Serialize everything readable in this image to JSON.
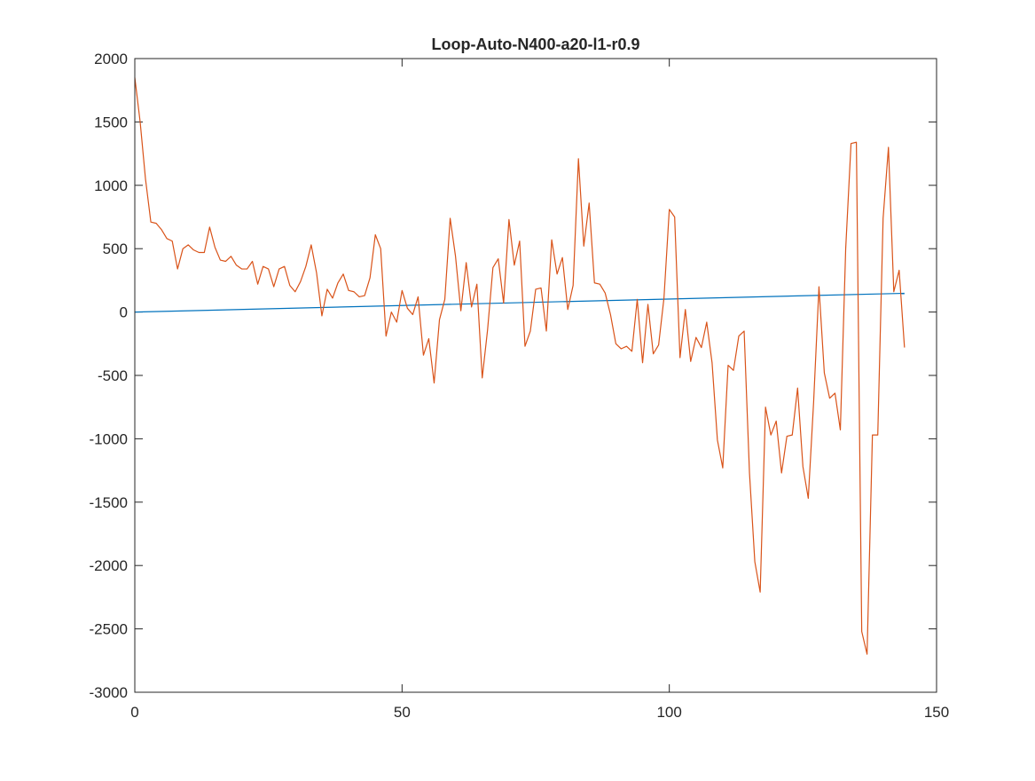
{
  "chart_data": {
    "type": "line",
    "title": "Loop-Auto-N400-a20-l1-r0.9",
    "xlabel": "",
    "ylabel": "",
    "xlim": [
      0,
      150
    ],
    "ylim": [
      -3000,
      2000
    ],
    "xticks": [
      0,
      50,
      100,
      150
    ],
    "yticks": [
      2000,
      1500,
      1000,
      500,
      0,
      -500,
      -1000,
      -1500,
      -2000,
      -2500,
      -3000
    ],
    "grid": false,
    "legend": "none",
    "series": [
      {
        "color": "#0072BD",
        "x": [
          0,
          144
        ],
        "y": [
          0,
          148
        ]
      },
      {
        "color": "#D95319",
        "x": [
          0,
          1,
          2,
          3,
          4,
          5,
          6,
          7,
          8,
          9,
          10,
          11,
          12,
          13,
          14,
          15,
          16,
          17,
          18,
          19,
          20,
          21,
          22,
          23,
          24,
          25,
          26,
          27,
          28,
          29,
          30,
          31,
          32,
          33,
          34,
          35,
          36,
          37,
          38,
          39,
          40,
          41,
          42,
          43,
          44,
          45,
          46,
          47,
          48,
          49,
          50,
          51,
          52,
          53,
          54,
          55,
          56,
          57,
          58,
          59,
          60,
          61,
          62,
          63,
          64,
          65,
          66,
          67,
          68,
          69,
          70,
          71,
          72,
          73,
          74,
          75,
          76,
          77,
          78,
          79,
          80,
          81,
          82,
          83,
          84,
          85,
          86,
          87,
          88,
          89,
          90,
          91,
          92,
          93,
          94,
          95,
          96,
          97,
          98,
          99,
          100,
          101,
          102,
          103,
          104,
          105,
          106,
          107,
          108,
          109,
          110,
          111,
          112,
          113,
          114,
          115,
          116,
          117,
          118,
          119,
          120,
          121,
          122,
          123,
          124,
          125,
          126,
          127,
          128,
          129,
          130,
          131,
          132,
          133,
          134,
          135,
          136,
          137,
          138,
          139,
          140,
          141,
          142,
          143,
          144
        ],
        "y": [
          1850,
          1500,
          1050,
          710,
          700,
          650,
          580,
          560,
          340,
          500,
          530,
          490,
          470,
          470,
          670,
          510,
          410,
          400,
          440,
          370,
          340,
          340,
          400,
          220,
          360,
          340,
          200,
          340,
          360,
          210,
          160,
          240,
          360,
          530,
          310,
          -30,
          180,
          110,
          230,
          300,
          170,
          160,
          120,
          130,
          270,
          610,
          500,
          -190,
          0,
          -80,
          170,
          30,
          -20,
          120,
          -340,
          -210,
          -560,
          -60,
          100,
          740,
          440,
          10,
          390,
          40,
          220,
          -520,
          -140,
          350,
          420,
          70,
          730,
          370,
          560,
          -270,
          -150,
          180,
          190,
          -150,
          570,
          300,
          430,
          20,
          210,
          1210,
          520,
          860,
          230,
          220,
          150,
          -20,
          -250,
          -290,
          -270,
          -310,
          100,
          -400,
          60,
          -330,
          -260,
          110,
          810,
          750,
          -360,
          20,
          -390,
          -200,
          -280,
          -80,
          -400,
          -1010,
          -1230,
          -420,
          -460,
          -190,
          -150,
          -1270,
          -1970,
          -2210,
          -750,
          -970,
          -860,
          -1270,
          -980,
          -970,
          -600,
          -1220,
          -1470,
          -710,
          200,
          -480,
          -680,
          -640,
          -930,
          500,
          1330,
          1340,
          -2520,
          -2700,
          -970,
          -970,
          740,
          1300,
          160,
          330,
          -280
        ]
      }
    ]
  }
}
